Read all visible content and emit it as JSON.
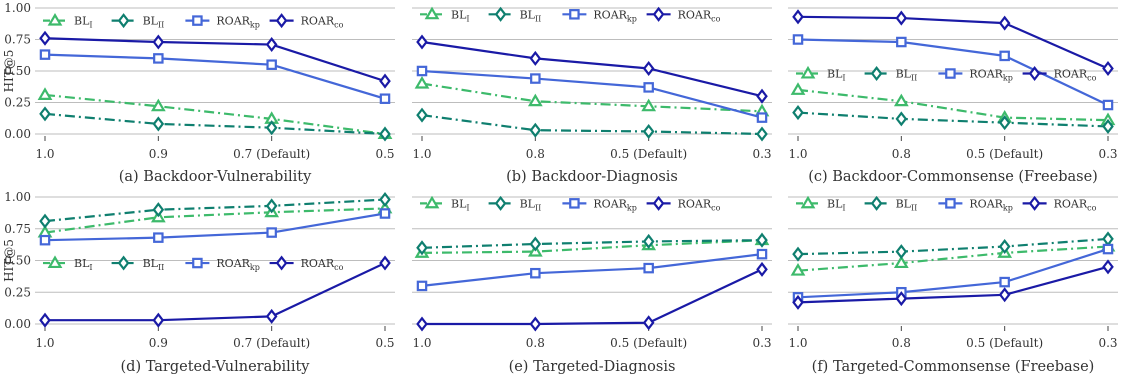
{
  "figure": {
    "ylabel": "HIT@5",
    "legend_labels": [
      {
        "base": "BL",
        "sub": "I"
      },
      {
        "base": "BL",
        "sub": "II"
      },
      {
        "base": "ROAR",
        "sub": "kp"
      },
      {
        "base": "ROAR",
        "sub": "co"
      }
    ],
    "yticks": [
      0.0,
      0.25,
      0.5,
      0.75,
      1.0
    ],
    "ytick_labels": [
      "0.00",
      "0.25",
      "0.50",
      "0.75",
      "1.00"
    ]
  },
  "chart_data": [
    {
      "type": "line",
      "caption": "(a) Backdoor-Vulnerability",
      "xtick_labels": [
        "1.0",
        "0.9",
        "0.7 (Default)",
        "0.5"
      ],
      "ylim": [
        0,
        1
      ],
      "legend_position": "top-left",
      "series": [
        {
          "name": "BL_I",
          "values": [
            0.31,
            0.22,
            0.12,
            0.0
          ]
        },
        {
          "name": "BL_II",
          "values": [
            0.16,
            0.08,
            0.05,
            0.0
          ]
        },
        {
          "name": "ROAR_kp",
          "values": [
            0.63,
            0.6,
            0.55,
            0.28
          ]
        },
        {
          "name": "ROAR_co",
          "values": [
            0.76,
            0.73,
            0.71,
            0.42
          ]
        }
      ]
    },
    {
      "type": "line",
      "caption": "(b) Backdoor-Diagnosis",
      "xtick_labels": [
        "1.0",
        "0.8",
        "0.5 (Default)",
        "0.3"
      ],
      "ylim": [
        0,
        1
      ],
      "legend_position": "top",
      "series": [
        {
          "name": "BL_I",
          "values": [
            0.4,
            0.26,
            0.22,
            0.18
          ]
        },
        {
          "name": "BL_II",
          "values": [
            0.15,
            0.03,
            0.02,
            0.0
          ]
        },
        {
          "name": "ROAR_kp",
          "values": [
            0.5,
            0.44,
            0.37,
            0.13
          ]
        },
        {
          "name": "ROAR_co",
          "values": [
            0.73,
            0.6,
            0.52,
            0.3
          ]
        }
      ]
    },
    {
      "type": "line",
      "caption": "(c) Backdoor-Commonsense (Freebase)",
      "xtick_labels": [
        "1.0",
        "0.8",
        "0.5 (Default)",
        "0.3"
      ],
      "ylim": [
        0,
        1
      ],
      "legend_position": "middle",
      "series": [
        {
          "name": "BL_I",
          "values": [
            0.35,
            0.26,
            0.13,
            0.11
          ]
        },
        {
          "name": "BL_II",
          "values": [
            0.17,
            0.12,
            0.09,
            0.06
          ]
        },
        {
          "name": "ROAR_kp",
          "values": [
            0.75,
            0.73,
            0.62,
            0.23
          ]
        },
        {
          "name": "ROAR_co",
          "values": [
            0.93,
            0.92,
            0.88,
            0.52
          ]
        }
      ]
    },
    {
      "type": "line",
      "caption": "(d) Targeted-Vulnerability",
      "xtick_labels": [
        "1.0",
        "0.9",
        "0.7 (Default)",
        "0.5"
      ],
      "ylim": [
        0,
        1
      ],
      "legend_position": "middle",
      "series": [
        {
          "name": "BL_I",
          "values": [
            0.72,
            0.84,
            0.88,
            0.91
          ]
        },
        {
          "name": "BL_II",
          "values": [
            0.81,
            0.9,
            0.93,
            0.98
          ]
        },
        {
          "name": "ROAR_kp",
          "values": [
            0.66,
            0.68,
            0.72,
            0.87
          ]
        },
        {
          "name": "ROAR_co",
          "values": [
            0.03,
            0.03,
            0.06,
            0.48
          ]
        }
      ]
    },
    {
      "type": "line",
      "caption": "(e) Targeted-Diagnosis",
      "xtick_labels": [
        "1.0",
        "0.8",
        "0.5 (Default)",
        "0.3"
      ],
      "ylim": [
        0,
        1
      ],
      "legend_position": "top",
      "series": [
        {
          "name": "BL_I",
          "values": [
            0.56,
            0.57,
            0.62,
            0.66
          ]
        },
        {
          "name": "BL_II",
          "values": [
            0.6,
            0.63,
            0.65,
            0.66
          ]
        },
        {
          "name": "ROAR_kp",
          "values": [
            0.3,
            0.4,
            0.44,
            0.55
          ]
        },
        {
          "name": "ROAR_co",
          "values": [
            0.0,
            0.0,
            0.01,
            0.43
          ]
        }
      ]
    },
    {
      "type": "line",
      "caption": "(f) Targeted-Commonsense (Freebase)",
      "xtick_labels": [
        "1.0",
        "0.8",
        "0.5 (Default)",
        "0.3"
      ],
      "ylim": [
        0,
        1
      ],
      "legend_position": "top",
      "series": [
        {
          "name": "BL_I",
          "values": [
            0.42,
            0.48,
            0.56,
            0.61
          ]
        },
        {
          "name": "BL_II",
          "values": [
            0.55,
            0.57,
            0.61,
            0.67
          ]
        },
        {
          "name": "ROAR_kp",
          "values": [
            0.21,
            0.25,
            0.33,
            0.59
          ]
        },
        {
          "name": "ROAR_co",
          "values": [
            0.17,
            0.2,
            0.23,
            0.45
          ]
        }
      ]
    }
  ],
  "series_style": [
    {
      "color": "#3dba6b",
      "marker": "triangle",
      "dash": "10,4,2,4"
    },
    {
      "color": "#0f7f6f",
      "marker": "diamond",
      "dash": "10,4,2,4"
    },
    {
      "color": "#4467d8",
      "marker": "square",
      "dash": ""
    },
    {
      "color": "#1a1aa6",
      "marker": "diamond",
      "dash": ""
    }
  ]
}
